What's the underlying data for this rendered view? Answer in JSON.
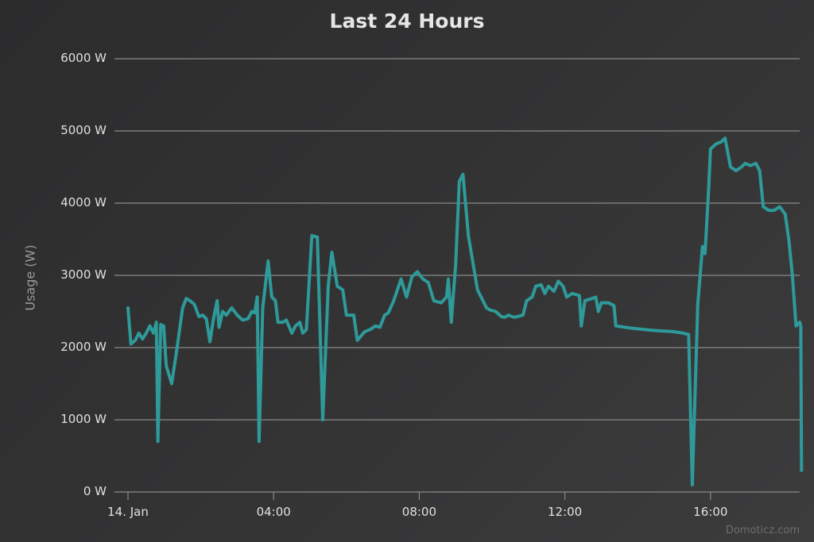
{
  "chart_data": {
    "type": "line",
    "title": "Last 24 Hours",
    "xlabel": "",
    "ylabel": "Usage (W)",
    "ylim": [
      0,
      6000
    ],
    "y_ticks": [
      "0 W",
      "1000 W",
      "2000 W",
      "3000 W",
      "4000 W",
      "5000 W",
      "6000 W"
    ],
    "x_ticks": [
      "14. Jan",
      "04:00",
      "08:00",
      "12:00",
      "16:00"
    ],
    "x_tick_hours": [
      0,
      4,
      8,
      12,
      16
    ],
    "grid": true,
    "legend": null,
    "color": "#2e9a9a",
    "credit": "Domoticz.com",
    "series": [
      {
        "name": "Usage",
        "unit": "W",
        "points": [
          [
            0.0,
            2550
          ],
          [
            0.08,
            2050
          ],
          [
            0.2,
            2100
          ],
          [
            0.3,
            2200
          ],
          [
            0.4,
            2120
          ],
          [
            0.5,
            2200
          ],
          [
            0.6,
            2300
          ],
          [
            0.7,
            2200
          ],
          [
            0.78,
            2350
          ],
          [
            0.82,
            700
          ],
          [
            0.9,
            2320
          ],
          [
            0.98,
            2300
          ],
          [
            1.05,
            1750
          ],
          [
            1.2,
            1500
          ],
          [
            1.35,
            2000
          ],
          [
            1.5,
            2550
          ],
          [
            1.6,
            2680
          ],
          [
            1.7,
            2650
          ],
          [
            1.82,
            2600
          ],
          [
            1.95,
            2430
          ],
          [
            2.05,
            2450
          ],
          [
            2.15,
            2400
          ],
          [
            2.25,
            2080
          ],
          [
            2.35,
            2400
          ],
          [
            2.45,
            2650
          ],
          [
            2.5,
            2280
          ],
          [
            2.6,
            2500
          ],
          [
            2.7,
            2450
          ],
          [
            2.85,
            2550
          ],
          [
            3.0,
            2450
          ],
          [
            3.15,
            2380
          ],
          [
            3.3,
            2400
          ],
          [
            3.4,
            2500
          ],
          [
            3.48,
            2480
          ],
          [
            3.55,
            2700
          ],
          [
            3.6,
            700
          ],
          [
            3.7,
            2550
          ],
          [
            3.85,
            3200
          ],
          [
            3.95,
            2700
          ],
          [
            4.05,
            2650
          ],
          [
            4.12,
            2350
          ],
          [
            4.25,
            2350
          ],
          [
            4.35,
            2380
          ],
          [
            4.5,
            2200
          ],
          [
            4.6,
            2300
          ],
          [
            4.72,
            2350
          ],
          [
            4.8,
            2200
          ],
          [
            4.9,
            2250
          ],
          [
            5.05,
            3550
          ],
          [
            5.2,
            3530
          ],
          [
            5.35,
            1000
          ],
          [
            5.5,
            2850
          ],
          [
            5.6,
            3320
          ],
          [
            5.75,
            2850
          ],
          [
            5.9,
            2800
          ],
          [
            6.0,
            2450
          ],
          [
            6.2,
            2450
          ],
          [
            6.3,
            2100
          ],
          [
            6.5,
            2220
          ],
          [
            6.65,
            2250
          ],
          [
            6.8,
            2300
          ],
          [
            6.92,
            2280
          ],
          [
            7.05,
            2450
          ],
          [
            7.15,
            2480
          ],
          [
            7.3,
            2650
          ],
          [
            7.5,
            2950
          ],
          [
            7.65,
            2700
          ],
          [
            7.8,
            2980
          ],
          [
            7.95,
            3050
          ],
          [
            8.1,
            2950
          ],
          [
            8.25,
            2900
          ],
          [
            8.4,
            2650
          ],
          [
            8.6,
            2620
          ],
          [
            8.75,
            2700
          ],
          [
            8.8,
            2950
          ],
          [
            8.88,
            2350
          ],
          [
            9.0,
            3150
          ],
          [
            9.1,
            4300
          ],
          [
            9.2,
            4400
          ],
          [
            9.35,
            3550
          ],
          [
            9.5,
            3100
          ],
          [
            9.6,
            2800
          ],
          [
            9.75,
            2650
          ],
          [
            9.85,
            2550
          ],
          [
            9.95,
            2520
          ],
          [
            10.1,
            2500
          ],
          [
            10.25,
            2430
          ],
          [
            10.35,
            2420
          ],
          [
            10.45,
            2450
          ],
          [
            10.6,
            2420
          ],
          [
            10.7,
            2430
          ],
          [
            10.85,
            2450
          ],
          [
            10.95,
            2650
          ],
          [
            11.1,
            2700
          ],
          [
            11.2,
            2850
          ],
          [
            11.35,
            2870
          ],
          [
            11.45,
            2750
          ],
          [
            11.55,
            2850
          ],
          [
            11.7,
            2780
          ],
          [
            11.82,
            2920
          ],
          [
            11.95,
            2850
          ],
          [
            12.05,
            2700
          ],
          [
            12.2,
            2750
          ],
          [
            12.4,
            2720
          ],
          [
            12.45,
            2300
          ],
          [
            12.55,
            2650
          ],
          [
            12.75,
            2680
          ],
          [
            12.85,
            2700
          ],
          [
            12.92,
            2500
          ],
          [
            13.0,
            2620
          ],
          [
            13.2,
            2620
          ],
          [
            13.35,
            2580
          ],
          [
            13.4,
            2300
          ],
          [
            13.8,
            2270
          ],
          [
            14.4,
            2240
          ],
          [
            15.0,
            2220
          ],
          [
            15.25,
            2200
          ],
          [
            15.4,
            2180
          ],
          [
            15.5,
            100
          ],
          [
            15.65,
            2600
          ],
          [
            15.78,
            3400
          ],
          [
            15.85,
            3300
          ],
          [
            15.95,
            4200
          ],
          [
            16.0,
            4750
          ],
          [
            16.15,
            4820
          ],
          [
            16.3,
            4850
          ],
          [
            16.4,
            4900
          ],
          [
            16.55,
            4500
          ],
          [
            16.7,
            4450
          ],
          [
            16.85,
            4500
          ],
          [
            16.95,
            4550
          ],
          [
            17.1,
            4520
          ],
          [
            17.25,
            4550
          ],
          [
            17.35,
            4450
          ],
          [
            17.45,
            3950
          ],
          [
            17.6,
            3900
          ],
          [
            17.75,
            3900
          ],
          [
            17.9,
            3950
          ],
          [
            18.05,
            3850
          ],
          [
            18.15,
            3500
          ],
          [
            18.25,
            3000
          ],
          [
            18.35,
            2300
          ],
          [
            18.45,
            2350
          ],
          [
            18.48,
            2300
          ],
          [
            18.5,
            300
          ]
        ]
      }
    ]
  }
}
